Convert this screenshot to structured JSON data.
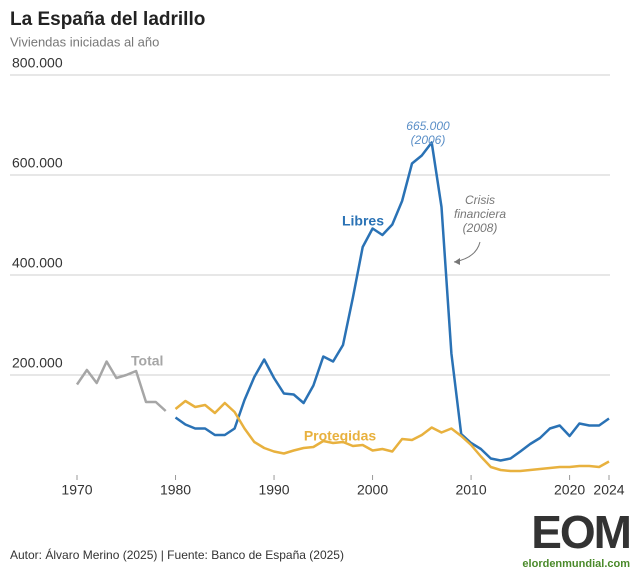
{
  "chart_data": {
    "type": "line",
    "title": "La España del ladrillo",
    "subtitle": "Viviendas iniciadas al año",
    "x": [
      1970,
      1971,
      1972,
      1973,
      1974,
      1975,
      1976,
      1977,
      1978,
      1979,
      1980,
      1981,
      1982,
      1983,
      1984,
      1985,
      1986,
      1987,
      1988,
      1989,
      1990,
      1991,
      1992,
      1993,
      1994,
      1995,
      1996,
      1997,
      1998,
      1999,
      2000,
      2001,
      2002,
      2003,
      2004,
      2005,
      2006,
      2007,
      2008,
      2009,
      2010,
      2011,
      2012,
      2013,
      2014,
      2015,
      2016,
      2017,
      2018,
      2019,
      2020,
      2021,
      2022,
      2023,
      2024
    ],
    "xlim": [
      1970,
      2024
    ],
    "xticks": [
      1970,
      1980,
      1990,
      2000,
      2010,
      2020,
      2024
    ],
    "ylim": [
      0,
      800000
    ],
    "yticks": [
      {
        "value": 200000,
        "label": "200.000"
      },
      {
        "value": 400000,
        "label": "400.000"
      },
      {
        "value": 600000,
        "label": "600.000"
      },
      {
        "value": 800000,
        "label": "800.000"
      }
    ],
    "grid": true,
    "series": [
      {
        "name": "Total",
        "color": "#a6a6a6",
        "values": [
          181000,
          210000,
          184000,
          227000,
          194000,
          200000,
          208000,
          146000,
          146000,
          128000,
          null,
          null,
          null,
          null,
          null,
          null,
          null,
          null,
          null,
          null,
          null,
          null,
          null,
          null,
          null,
          null,
          null,
          null,
          null,
          null,
          null,
          null,
          null,
          null,
          null,
          null,
          null,
          null,
          null,
          null,
          null,
          null,
          null,
          null,
          null,
          null,
          null,
          null,
          null,
          null,
          null,
          null,
          null,
          null,
          null
        ]
      },
      {
        "name": "Libres",
        "color": "#2a72b5",
        "values": [
          null,
          null,
          null,
          null,
          null,
          null,
          null,
          null,
          null,
          null,
          115000,
          101000,
          93000,
          93000,
          80000,
          80000,
          93000,
          150000,
          196000,
          231000,
          194000,
          163000,
          161000,
          144000,
          179000,
          237000,
          227000,
          260000,
          355000,
          456000,
          493000,
          480000,
          501000,
          548000,
          623000,
          639000,
          665000,
          536000,
          243000,
          82000,
          64000,
          52000,
          33000,
          29000,
          33000,
          47000,
          62000,
          74000,
          93000,
          99000,
          78000,
          103000,
          99000,
          99000,
          113000
        ]
      },
      {
        "name": "Protegidas",
        "color": "#e8b13e",
        "values": [
          null,
          null,
          null,
          null,
          null,
          null,
          null,
          null,
          null,
          null,
          132000,
          148000,
          136000,
          140000,
          124000,
          144000,
          126000,
          93000,
          66000,
          54000,
          47000,
          43000,
          49000,
          54000,
          56000,
          68000,
          64000,
          66000,
          58000,
          60000,
          49000,
          52000,
          47000,
          72000,
          70000,
          80000,
          95000,
          85000,
          93000,
          78000,
          60000,
          37000,
          16000,
          10000,
          8000,
          8000,
          10000,
          12000,
          14000,
          16000,
          16000,
          18000,
          18000,
          16000,
          27000
        ]
      }
    ],
    "annotations": [
      {
        "lines": [
          "665.000",
          "(2006)"
        ]
      },
      {
        "lines": [
          "Crisis",
          "financiera",
          "(2008)"
        ]
      }
    ]
  },
  "footer": "Autor: Álvaro Merino (2025) | Fuente: Banco de España (2025)",
  "logo": {
    "mark": "EOM",
    "site": "elordenmundial.com"
  }
}
